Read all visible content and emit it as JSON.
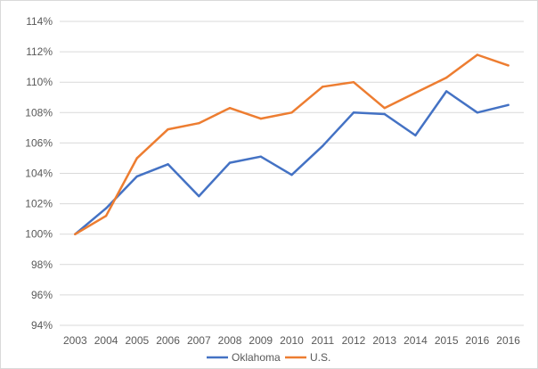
{
  "chart_data": {
    "type": "line",
    "title": "",
    "xlabel": "",
    "ylabel": "",
    "categories": [
      "2003",
      "2004",
      "2005",
      "2006",
      "2007",
      "2008",
      "2009",
      "2010",
      "2011",
      "2012",
      "2013",
      "2014",
      "2015",
      "2016",
      "2016"
    ],
    "series": [
      {
        "name": "Oklahoma",
        "color": "#4472c4",
        "values": [
          100.0,
          101.7,
          103.8,
          104.6,
          102.5,
          104.7,
          105.1,
          103.9,
          105.8,
          108.0,
          107.9,
          106.5,
          109.4,
          108.0,
          108.5
        ]
      },
      {
        "name": "U.S.",
        "color": "#ed7d31",
        "values": [
          100.0,
          101.2,
          105.0,
          106.9,
          107.3,
          108.3,
          107.6,
          108.0,
          109.7,
          110.0,
          108.3,
          109.3,
          110.3,
          111.8,
          111.1
        ]
      }
    ],
    "ylim": [
      94,
      114
    ],
    "yticks": [
      94,
      96,
      98,
      100,
      102,
      104,
      106,
      108,
      110,
      112,
      114
    ],
    "ytick_labels": [
      "94%",
      "96%",
      "98%",
      "100%",
      "102%",
      "104%",
      "106%",
      "108%",
      "110%",
      "112%",
      "114%"
    ],
    "grid": true,
    "legend_position": "bottom"
  }
}
